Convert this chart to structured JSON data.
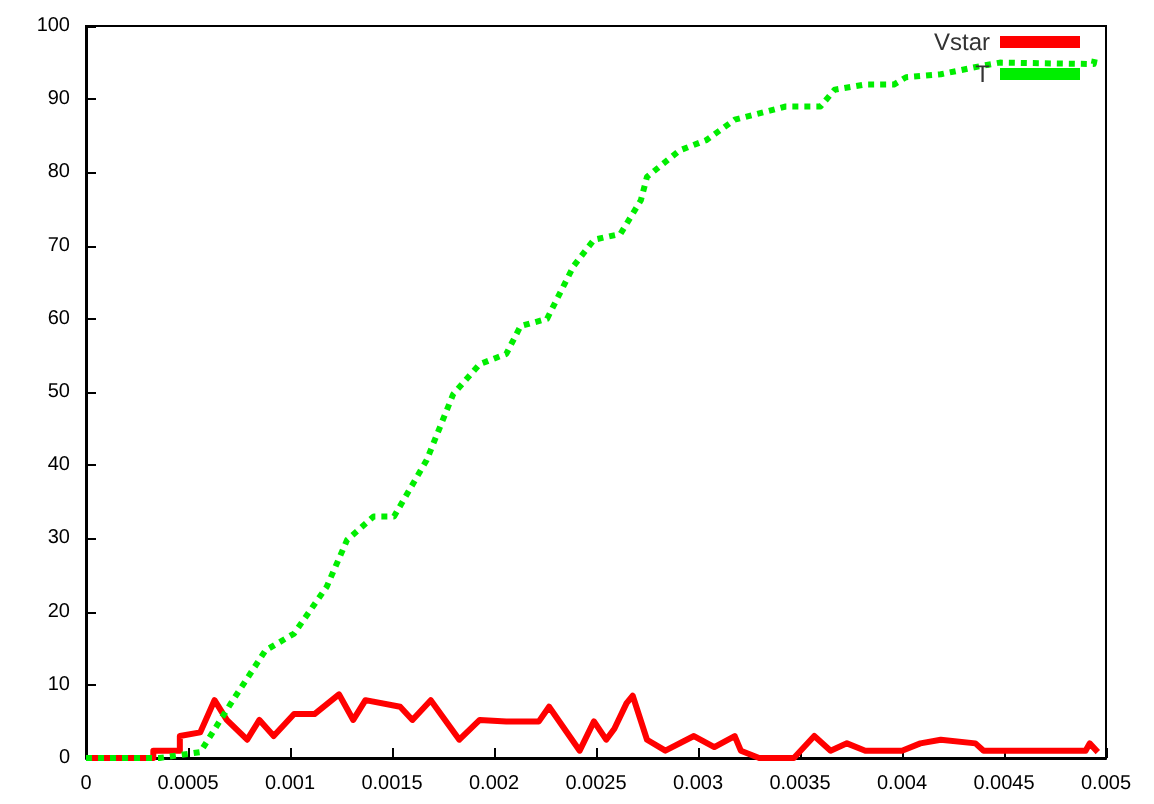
{
  "chart_data": {
    "type": "line",
    "xlim": [
      0,
      0.005
    ],
    "xticks": [
      0,
      0.0005,
      0.001,
      0.0015,
      0.002,
      0.0025,
      0.003,
      0.0035,
      0.004,
      0.0045,
      0.005
    ],
    "ylim": [
      0,
      100
    ],
    "yticks": [
      0,
      10,
      20,
      30,
      40,
      50,
      60,
      70,
      80,
      90,
      100
    ],
    "grid": false,
    "legend": "top right",
    "marker": "none",
    "series": [
      {
        "name": "Vstar",
        "color": "#ff0000",
        "line_style": "solid",
        "x": [
          0,
          0.00033,
          0.00033,
          0.00046,
          0.00046,
          0.00056,
          0.00063,
          0.00069,
          0.00079,
          0.00085,
          0.00092,
          0.00102,
          0.00112,
          0.00124,
          0.00131,
          0.00137,
          0.00154,
          0.0016,
          0.00169,
          0.00183,
          0.00193,
          0.00206,
          0.00222,
          0.00227,
          0.00242,
          0.00249,
          0.00255,
          0.00259,
          0.00265,
          0.00268,
          0.00275,
          0.00284,
          0.00298,
          0.00308,
          0.00318,
          0.00321,
          0.0033,
          0.00347,
          0.00357,
          0.00365,
          0.00373,
          0.00382,
          0.004,
          0.00409,
          0.00419,
          0.00436,
          0.0044,
          0.0049,
          0.00492,
          0.00496
        ],
        "values": [
          0,
          0,
          1,
          1,
          3,
          3.5,
          7.9,
          5.2,
          2.5,
          5.2,
          3,
          6,
          6,
          8.7,
          5.2,
          7.9,
          7,
          5.2,
          7.9,
          2.5,
          5.2,
          5,
          5,
          7,
          1,
          5,
          2.5,
          4,
          7.5,
          8.5,
          2.5,
          1,
          3,
          1.5,
          3,
          1,
          0,
          0,
          3,
          1,
          2,
          1,
          1,
          2,
          2.5,
          2,
          1,
          1,
          2,
          0.8
        ]
      },
      {
        "name": "T",
        "color": "#00ee00",
        "line_style": "dotted",
        "x": [
          0,
          0.00036,
          0.00056,
          0.00072,
          0.00088,
          0.00102,
          0.00118,
          0.00128,
          0.00141,
          0.00151,
          0.00167,
          0.0018,
          0.00193,
          0.00206,
          0.00213,
          0.00226,
          0.00239,
          0.00249,
          0.00262,
          0.00272,
          0.00275,
          0.00291,
          0.00304,
          0.00318,
          0.00343,
          0.0036,
          0.00367,
          0.00382,
          0.00396,
          0.00402,
          0.00419,
          0.00438,
          0.00448,
          0.00494,
          0.00495
        ],
        "values": [
          0,
          0,
          0.8,
          7.9,
          14.7,
          17,
          23.4,
          29.8,
          33,
          33,
          40.7,
          49.7,
          53.8,
          55.2,
          59,
          60,
          67.2,
          70.8,
          71.6,
          76.2,
          79.4,
          83,
          84.4,
          87.2,
          89,
          89,
          91.3,
          92,
          92,
          93,
          93.4,
          94.5,
          95,
          94.8,
          96.2
        ]
      }
    ]
  }
}
